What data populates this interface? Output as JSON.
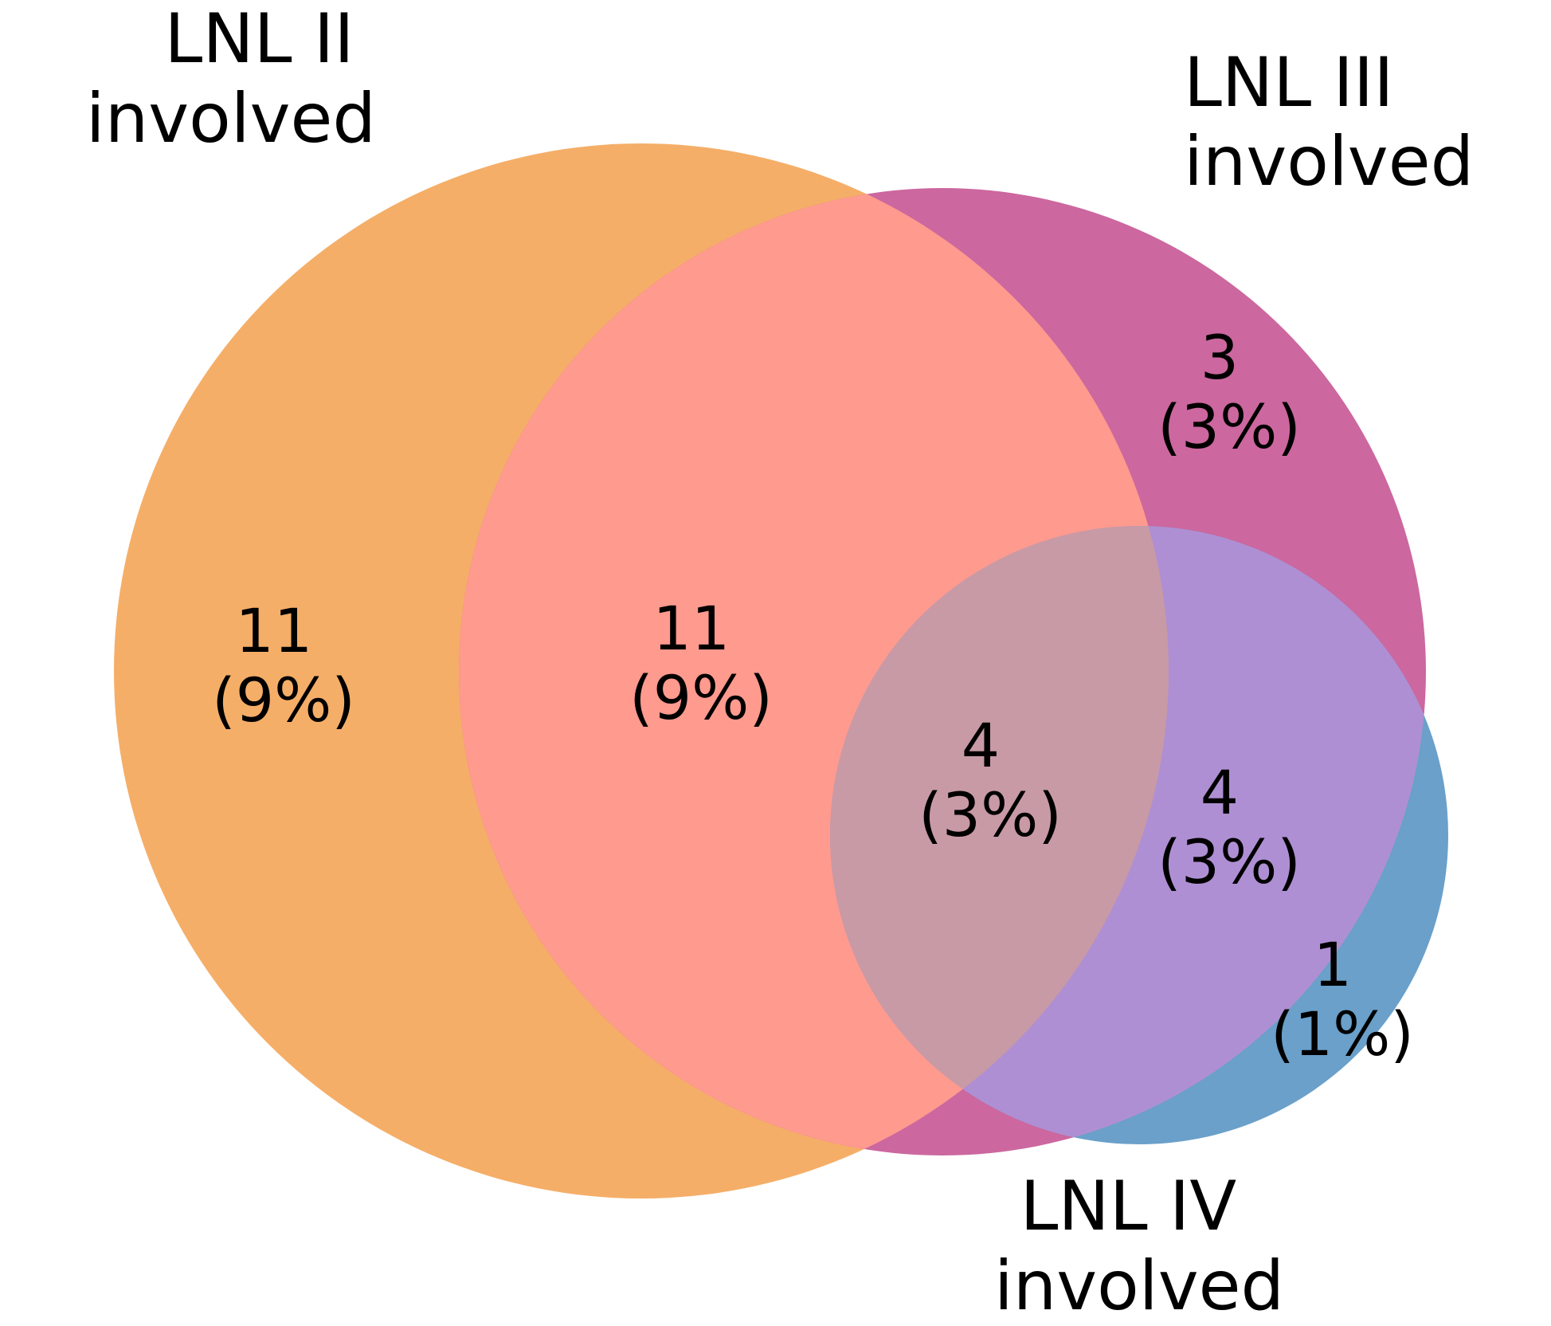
{
  "colors": {
    "lnl_ii": "#f5ae68",
    "lnl_iii": "#cc679f",
    "lnl_iv": "#6aa0ca",
    "ii_iii": "#ff9a8e",
    "iii_iv": "#af8fd3",
    "ii_iii_iv": "#c89aa5",
    "text": "#000000"
  },
  "sets": [
    {
      "id": "lnl_ii",
      "line1": "LNL II",
      "line2": "involved"
    },
    {
      "id": "lnl_iii",
      "line1": "LNL III",
      "line2": "involved"
    },
    {
      "id": "lnl_iv",
      "line1": "LNL IV",
      "line2": "involved"
    }
  ],
  "regions": [
    {
      "id": "only_ii",
      "sets": [
        "lnl_ii"
      ],
      "count": "11",
      "percent": "(9%)"
    },
    {
      "id": "ii_iii",
      "sets": [
        "lnl_ii",
        "lnl_iii"
      ],
      "count": "11",
      "percent": "(9%)"
    },
    {
      "id": "only_iii",
      "sets": [
        "lnl_iii"
      ],
      "count": "3",
      "percent": "(3%)"
    },
    {
      "id": "ii_iii_iv",
      "sets": [
        "lnl_ii",
        "lnl_iii",
        "lnl_iv"
      ],
      "count": "4",
      "percent": "(3%)"
    },
    {
      "id": "iii_iv",
      "sets": [
        "lnl_iii",
        "lnl_iv"
      ],
      "count": "4",
      "percent": "(3%)"
    },
    {
      "id": "only_iv",
      "sets": [
        "lnl_iv"
      ],
      "count": "1",
      "percent": "(1%)"
    }
  ]
}
